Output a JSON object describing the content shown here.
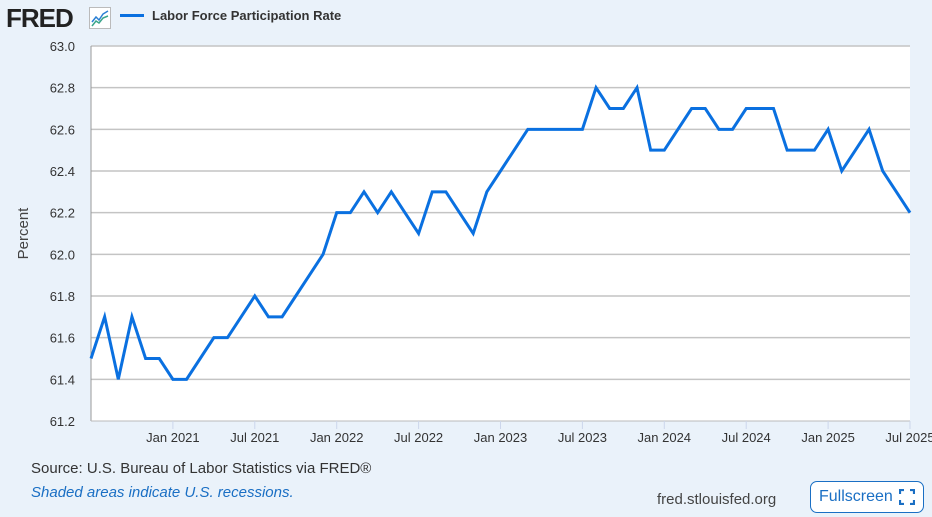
{
  "header": {
    "logo": "FRED",
    "series_label": "Labor Force Participation Rate"
  },
  "footer": {
    "source": "Source: U.S. Bureau of Labor Statistics via FRED®",
    "recession_note": "Shaded areas indicate U.S. recessions.",
    "site": "fred.stlouisfed.org",
    "fullscreen_label": "Fullscreen"
  },
  "icons": {
    "chart": "line-chart-icon",
    "fullscreen": "expand-icon"
  },
  "chart_data": {
    "type": "line",
    "ylabel": "Percent",
    "ylim": [
      61.2,
      63.0
    ],
    "yticks": [
      "61.2",
      "61.4",
      "61.6",
      "61.8",
      "62.0",
      "62.2",
      "62.4",
      "62.6",
      "62.8",
      "63.0"
    ],
    "xrange": [
      "2020-07",
      "2025-07"
    ],
    "xticks": [
      {
        "date": "2021-01",
        "label": "Jan 2021"
      },
      {
        "date": "2021-07",
        "label": "Jul 2021"
      },
      {
        "date": "2022-01",
        "label": "Jan 2022"
      },
      {
        "date": "2022-07",
        "label": "Jul 2022"
      },
      {
        "date": "2023-01",
        "label": "Jan 2023"
      },
      {
        "date": "2023-07",
        "label": "Jul 2023"
      },
      {
        "date": "2024-01",
        "label": "Jan 2024"
      },
      {
        "date": "2024-07",
        "label": "Jul 2024"
      },
      {
        "date": "2025-01",
        "label": "Jan 2025"
      },
      {
        "date": "2025-07",
        "label": "Jul 2025"
      }
    ],
    "grid": true,
    "color": "#0a70e0",
    "series": [
      {
        "name": "Labor Force Participation Rate",
        "start": "2020-07",
        "frequency": "monthly",
        "values": [
          61.5,
          61.7,
          61.4,
          61.7,
          61.5,
          61.5,
          61.4,
          61.4,
          61.5,
          61.6,
          61.6,
          61.7,
          61.8,
          61.7,
          61.7,
          61.8,
          61.9,
          62.0,
          62.2,
          62.2,
          62.3,
          62.2,
          62.3,
          62.2,
          62.1,
          62.3,
          62.3,
          62.2,
          62.1,
          62.3,
          62.4,
          62.5,
          62.6,
          62.6,
          62.6,
          62.6,
          62.6,
          62.8,
          62.7,
          62.7,
          62.8,
          62.5,
          62.5,
          62.6,
          62.7,
          62.7,
          62.6,
          62.6,
          62.7,
          62.7,
          62.7,
          62.5,
          62.5,
          62.5,
          62.6,
          62.4,
          62.5,
          62.6,
          62.4,
          62.3,
          62.2
        ]
      }
    ]
  }
}
